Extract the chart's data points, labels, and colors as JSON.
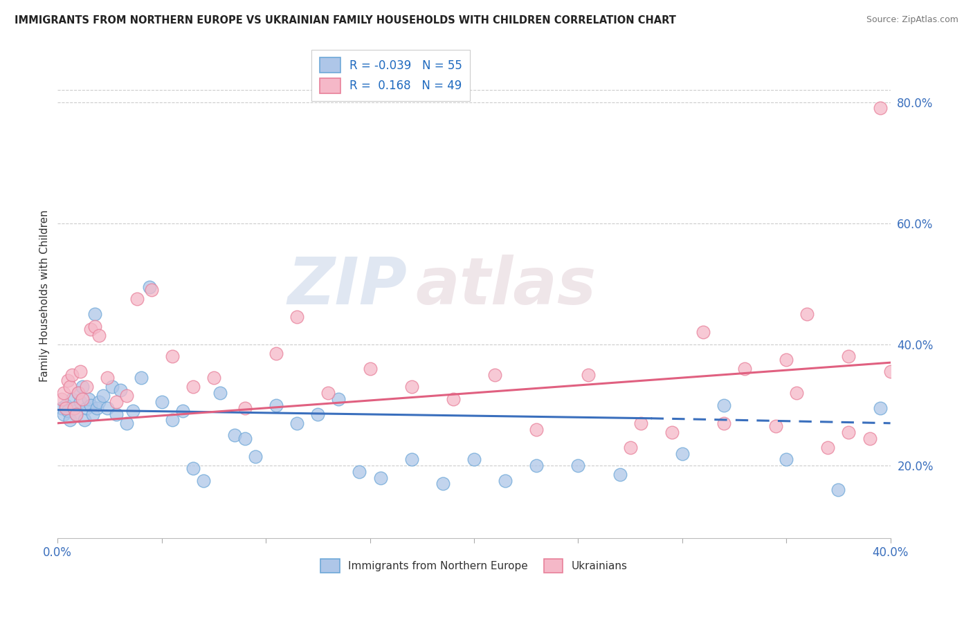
{
  "title": "IMMIGRANTS FROM NORTHERN EUROPE VS UKRAINIAN FAMILY HOUSEHOLDS WITH CHILDREN CORRELATION CHART",
  "source": "Source: ZipAtlas.com",
  "ylabel": "Family Households with Children",
  "series1_name": "Immigrants from Northern Europe",
  "series2_name": "Ukrainians",
  "series1_color": "#aec6e8",
  "series2_color": "#f5b8c8",
  "series1_edge_color": "#6ea8d8",
  "series2_edge_color": "#e8809a",
  "series1_line_color": "#3a6fbd",
  "series2_line_color": "#e06080",
  "series1_R": "-0.039",
  "series1_N": "55",
  "series2_R": "0.168",
  "series2_N": "49",
  "right_yticks": [
    "80.0%",
    "60.0%",
    "40.0%",
    "20.0%"
  ],
  "right_ytick_values": [
    0.8,
    0.6,
    0.4,
    0.2
  ],
  "xmin": 0.0,
  "xmax": 0.4,
  "ymin": 0.08,
  "ymax": 0.88,
  "watermark_zip": "ZIP",
  "watermark_atlas": "atlas",
  "legend_R_color": "#1f6abf",
  "series1_x": [
    0.002,
    0.003,
    0.004,
    0.005,
    0.006,
    0.007,
    0.008,
    0.009,
    0.01,
    0.011,
    0.012,
    0.013,
    0.014,
    0.015,
    0.016,
    0.017,
    0.018,
    0.019,
    0.02,
    0.022,
    0.024,
    0.026,
    0.028,
    0.03,
    0.033,
    0.036,
    0.04,
    0.044,
    0.05,
    0.055,
    0.06,
    0.065,
    0.07,
    0.078,
    0.085,
    0.09,
    0.095,
    0.105,
    0.115,
    0.125,
    0.135,
    0.145,
    0.155,
    0.17,
    0.185,
    0.2,
    0.215,
    0.23,
    0.25,
    0.27,
    0.3,
    0.32,
    0.35,
    0.375,
    0.395
  ],
  "series1_y": [
    0.295,
    0.285,
    0.3,
    0.29,
    0.275,
    0.31,
    0.295,
    0.285,
    0.32,
    0.305,
    0.33,
    0.275,
    0.295,
    0.31,
    0.3,
    0.285,
    0.45,
    0.295,
    0.305,
    0.315,
    0.295,
    0.33,
    0.285,
    0.325,
    0.27,
    0.29,
    0.345,
    0.495,
    0.305,
    0.275,
    0.29,
    0.195,
    0.175,
    0.32,
    0.25,
    0.245,
    0.215,
    0.3,
    0.27,
    0.285,
    0.31,
    0.19,
    0.18,
    0.21,
    0.17,
    0.21,
    0.175,
    0.2,
    0.2,
    0.185,
    0.22,
    0.3,
    0.21,
    0.16,
    0.295
  ],
  "series2_x": [
    0.002,
    0.003,
    0.004,
    0.005,
    0.006,
    0.007,
    0.008,
    0.009,
    0.01,
    0.011,
    0.012,
    0.014,
    0.016,
    0.018,
    0.02,
    0.024,
    0.028,
    0.033,
    0.038,
    0.045,
    0.055,
    0.065,
    0.075,
    0.09,
    0.105,
    0.115,
    0.13,
    0.15,
    0.17,
    0.19,
    0.21,
    0.23,
    0.255,
    0.28,
    0.31,
    0.33,
    0.35,
    0.36,
    0.38,
    0.395
  ],
  "series2_y": [
    0.31,
    0.32,
    0.295,
    0.34,
    0.33,
    0.35,
    0.295,
    0.285,
    0.32,
    0.355,
    0.31,
    0.33,
    0.425,
    0.43,
    0.415,
    0.345,
    0.305,
    0.315,
    0.475,
    0.49,
    0.38,
    0.33,
    0.345,
    0.295,
    0.385,
    0.445,
    0.32,
    0.36,
    0.33,
    0.31,
    0.35,
    0.26,
    0.35,
    0.27,
    0.42,
    0.36,
    0.375,
    0.45,
    0.38,
    0.79
  ],
  "series2_extra_x": [
    0.38,
    0.4,
    0.37,
    0.355,
    0.39,
    0.32,
    0.345,
    0.295,
    0.275
  ],
  "series2_extra_y": [
    0.255,
    0.355,
    0.23,
    0.32,
    0.245,
    0.27,
    0.265,
    0.255,
    0.23
  ],
  "grid_color": "#cccccc",
  "background_color": "#ffffff",
  "marker_size": 180
}
